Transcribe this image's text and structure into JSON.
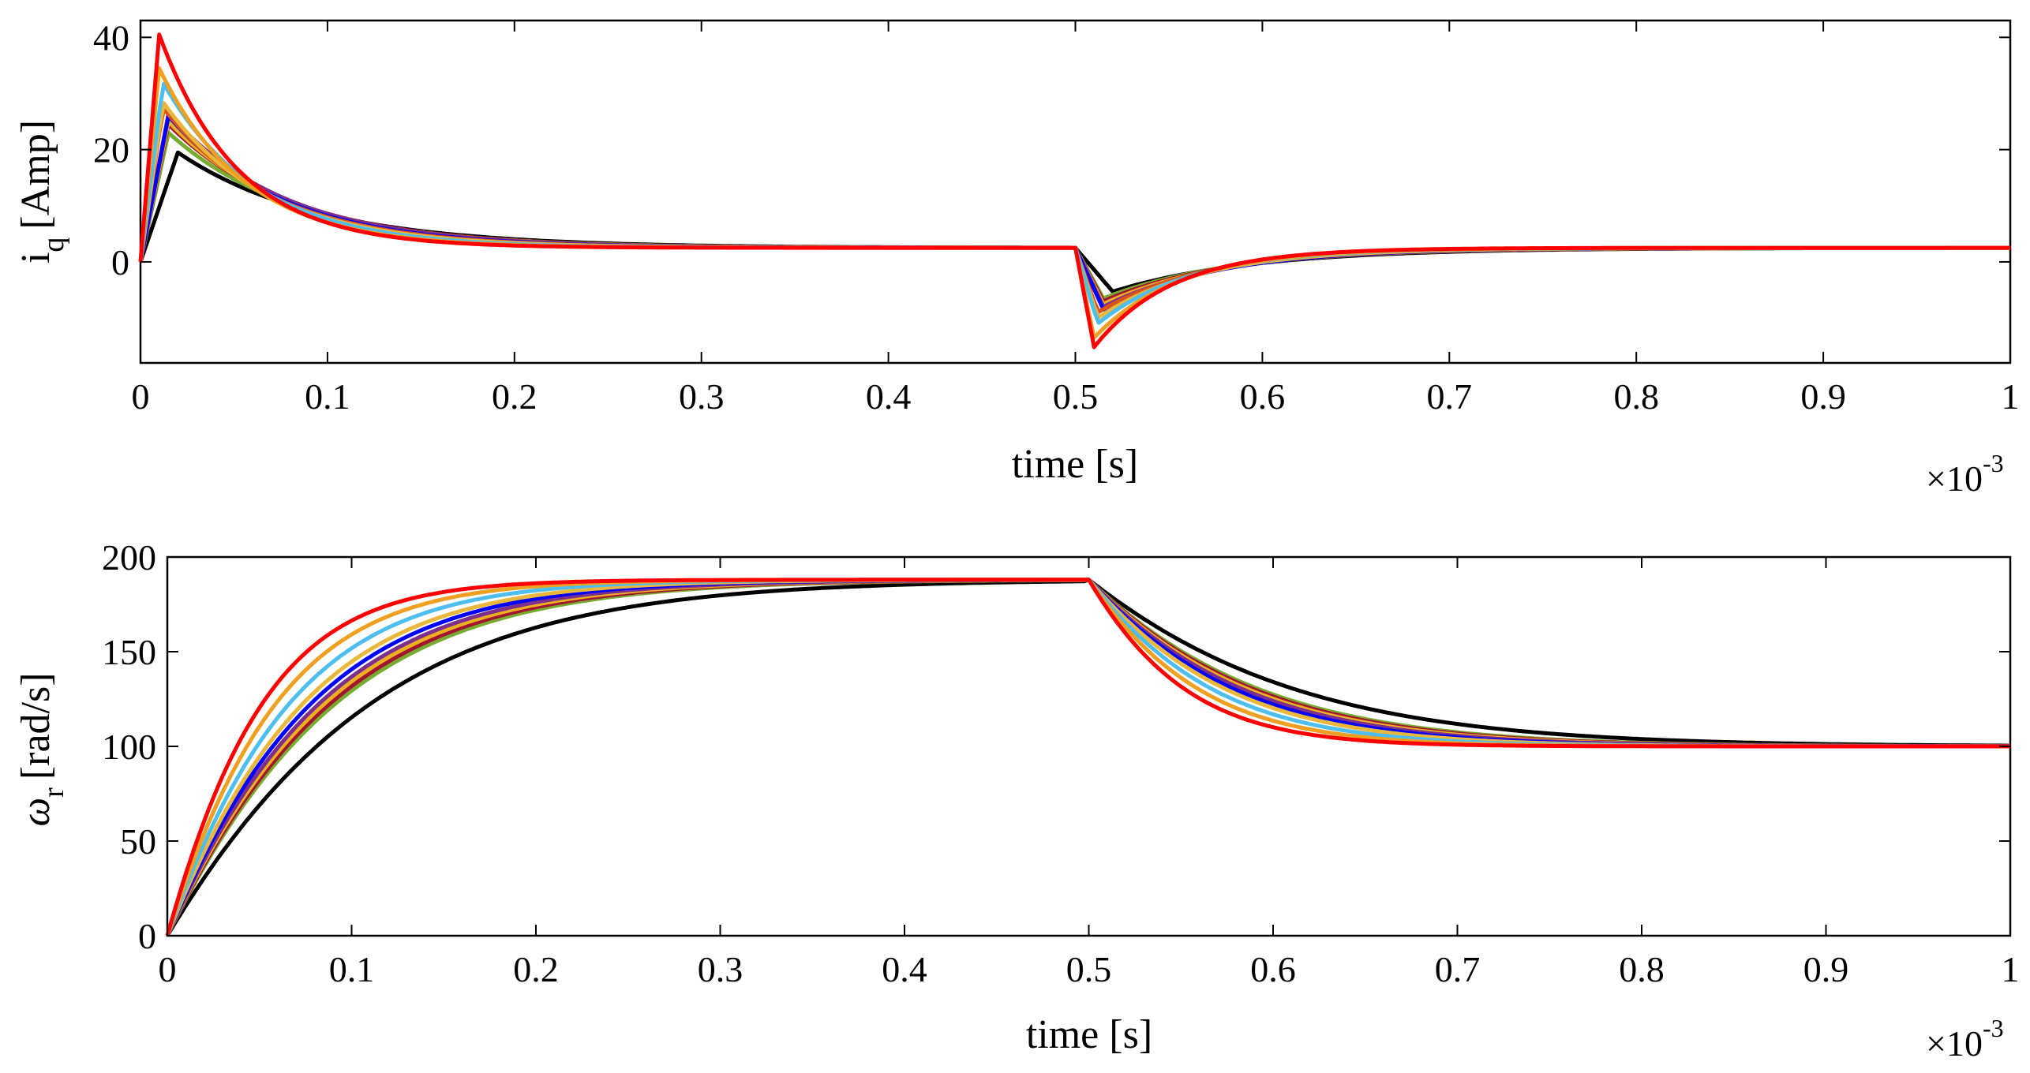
{
  "chart_data": [
    {
      "type": "line",
      "id": "iq",
      "xlabel": "time [s]",
      "ylabel": "i",
      "ylabel_sub": "q",
      "ylabel_unit": "[Amp]",
      "x_multiplier": "×10",
      "x_multiplier_exp": "-3",
      "xlim": [
        0,
        1
      ],
      "ylim": [
        -18,
        43
      ],
      "xticks": [
        0,
        0.1,
        0.2,
        0.3,
        0.4,
        0.5,
        0.6,
        0.7,
        0.8,
        0.9,
        1
      ],
      "xtick_labels": [
        "0",
        "0.1",
        "0.2",
        "0.3",
        "0.4",
        "0.5",
        "0.6",
        "0.7",
        "0.8",
        "0.9",
        "1"
      ],
      "yticks": [
        0,
        20,
        40
      ],
      "ytick_labels": [
        "0",
        "20",
        "40"
      ],
      "grid": false,
      "series": [
        {
          "name": "black",
          "color": "#000000",
          "peak": 19.5,
          "tpeak": 0.02,
          "tau1": 0.075,
          "dip": -5.3,
          "tdip": 0.52,
          "tau2": 0.075
        },
        {
          "name": "olive-green",
          "color": "#77AC30",
          "peak": 23.0,
          "tpeak": 0.015,
          "tau1": 0.068,
          "dip": -6.5,
          "tdip": 0.515,
          "tau2": 0.068
        },
        {
          "name": "brown",
          "color": "#A2142F",
          "peak": 24.5,
          "tpeak": 0.015,
          "tau1": 0.066,
          "dip": -7.0,
          "tdip": 0.515,
          "tau2": 0.066
        },
        {
          "name": "amber",
          "color": "#EDB120",
          "peak": 25.0,
          "tpeak": 0.015,
          "tau1": 0.064,
          "dip": -7.5,
          "tdip": 0.515,
          "tau2": 0.064
        },
        {
          "name": "purple",
          "color": "#7E2F8E",
          "peak": 26.5,
          "tpeak": 0.015,
          "tau1": 0.062,
          "dip": -8.0,
          "tdip": 0.515,
          "tau2": 0.062
        },
        {
          "name": "blue",
          "color": "#0000FF",
          "peak": 26.0,
          "tpeak": 0.015,
          "tau1": 0.06,
          "dip": -8.5,
          "tdip": 0.515,
          "tau2": 0.06
        },
        {
          "name": "dark-orange",
          "color": "#D95319",
          "peak": 27.5,
          "tpeak": 0.012,
          "tau1": 0.058,
          "dip": -9.0,
          "tdip": 0.512,
          "tau2": 0.058
        },
        {
          "name": "gold",
          "color": "#E8B73C",
          "peak": 28.5,
          "tpeak": 0.012,
          "tau1": 0.055,
          "dip": -10.0,
          "tdip": 0.512,
          "tau2": 0.055
        },
        {
          "name": "light-blue",
          "color": "#4DBEEE",
          "peak": 32.0,
          "tpeak": 0.012,
          "tau1": 0.05,
          "dip": -11.0,
          "tdip": 0.512,
          "tau2": 0.05
        },
        {
          "name": "orange",
          "color": "#F0A020",
          "peak": 34.5,
          "tpeak": 0.01,
          "tau1": 0.046,
          "dip": -13.5,
          "tdip": 0.51,
          "tau2": 0.046
        },
        {
          "name": "red",
          "color": "#FF0000",
          "peak": 40.5,
          "tpeak": 0.01,
          "tau1": 0.042,
          "dip": -15.2,
          "tdip": 0.51,
          "tau2": 0.042
        }
      ],
      "steady_value_1": 2.5,
      "steady_value_2": 2.5
    },
    {
      "type": "line",
      "id": "wr",
      "xlabel": "time [s]",
      "ylabel": "ω",
      "ylabel_sub": "r",
      "ylabel_unit": "[rad/s]",
      "x_multiplier": "×10",
      "x_multiplier_exp": "-3",
      "xlim": [
        0,
        1
      ],
      "ylim": [
        0,
        200
      ],
      "xticks": [
        0,
        0.1,
        0.2,
        0.3,
        0.4,
        0.5,
        0.6,
        0.7,
        0.8,
        0.9,
        1
      ],
      "xtick_labels": [
        "0",
        "0.1",
        "0.2",
        "0.3",
        "0.4",
        "0.5",
        "0.6",
        "0.7",
        "0.8",
        "0.9",
        "1"
      ],
      "yticks": [
        0,
        50,
        100,
        150,
        200
      ],
      "ytick_labels": [
        "0",
        "50",
        "100",
        "150",
        "200"
      ],
      "grid": false,
      "w_high": 188,
      "w_low": 100,
      "series": [
        {
          "name": "black",
          "color": "#000000",
          "tau": 0.075
        },
        {
          "name": "olive-green",
          "color": "#77AC30",
          "tau": 0.062
        },
        {
          "name": "brown",
          "color": "#A2142F",
          "tau": 0.06
        },
        {
          "name": "amber",
          "color": "#EDB120",
          "tau": 0.058
        },
        {
          "name": "purple",
          "color": "#7E2F8E",
          "tau": 0.056
        },
        {
          "name": "blue",
          "color": "#0000FF",
          "tau": 0.053
        },
        {
          "name": "gold",
          "color": "#E8B73C",
          "tau": 0.05
        },
        {
          "name": "light-blue",
          "color": "#4DBEEE",
          "tau": 0.045
        },
        {
          "name": "orange",
          "color": "#F0A020",
          "tau": 0.04
        },
        {
          "name": "red",
          "color": "#FF0000",
          "tau": 0.035
        }
      ]
    }
  ]
}
